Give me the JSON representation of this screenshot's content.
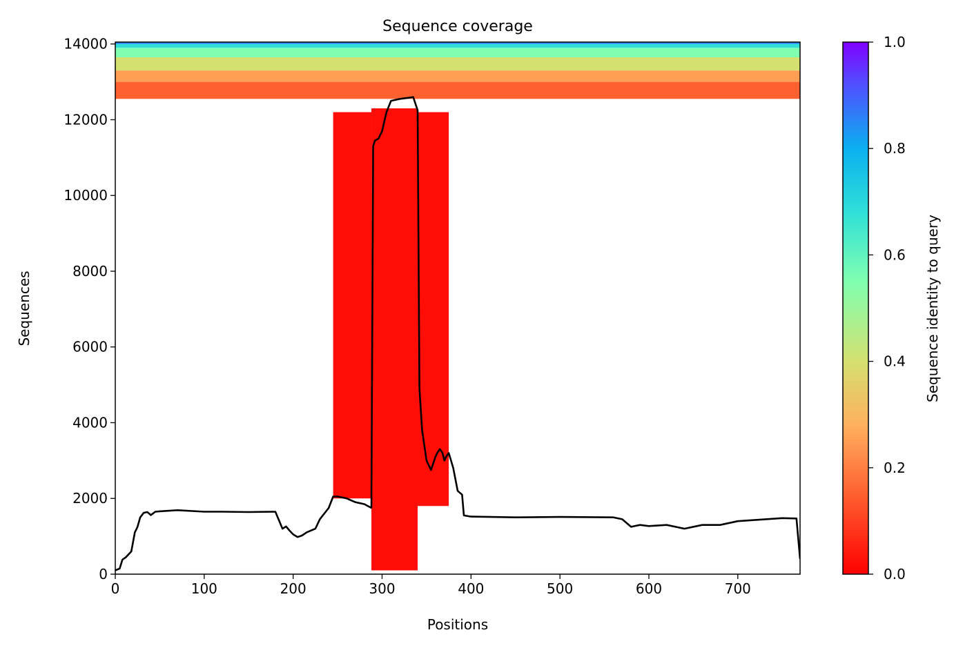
{
  "chart_data": {
    "type": "heatmap",
    "title": "Sequence coverage",
    "xlabel": "Positions",
    "ylabel": "Sequences",
    "xlim": [
      0,
      770
    ],
    "ylim": [
      0,
      14050
    ],
    "xticks": [
      0,
      100,
      200,
      300,
      400,
      500,
      600,
      700
    ],
    "yticks": [
      0,
      2000,
      4000,
      6000,
      8000,
      10000,
      12000,
      14000
    ],
    "grid": false,
    "colorbar": {
      "label": "Sequence identity to query",
      "range": [
        0.0,
        1.0
      ],
      "ticks": [
        "0.0",
        "0.2",
        "0.4",
        "0.6",
        "0.8",
        "1.0"
      ],
      "colormap": "rainbow"
    },
    "coverage_blocks": [
      {
        "x0": 0,
        "x1": 770,
        "y0": 12550,
        "y1": 13000,
        "identity": 0.15
      },
      {
        "x0": 0,
        "x1": 770,
        "y0": 13000,
        "y1": 13300,
        "identity": 0.25
      },
      {
        "x0": 0,
        "x1": 770,
        "y0": 13300,
        "y1": 13650,
        "identity": 0.4
      },
      {
        "x0": 0,
        "x1": 770,
        "y0": 13650,
        "y1": 13900,
        "identity": 0.55
      },
      {
        "x0": 0,
        "x1": 770,
        "y0": 13900,
        "y1": 14000,
        "identity": 0.68
      },
      {
        "x0": 0,
        "x1": 770,
        "y0": 14000,
        "y1": 14050,
        "identity": 0.85
      },
      {
        "x0": 288,
        "x1": 340,
        "y0": 100,
        "y1": 12300,
        "identity": 0.02
      },
      {
        "x0": 340,
        "x1": 375,
        "y0": 1800,
        "y1": 12200,
        "identity": 0.02
      },
      {
        "x0": 245,
        "x1": 288,
        "y0": 2000,
        "y1": 12200,
        "identity": 0.02
      }
    ],
    "series": [
      {
        "x": [
          0,
          5,
          8,
          12,
          18,
          22,
          25,
          28,
          32,
          36,
          40,
          45,
          50,
          70,
          100,
          120,
          150,
          180,
          188,
          192,
          196,
          200,
          205,
          210,
          215,
          225,
          230,
          240,
          245,
          250,
          260,
          270,
          280,
          288,
          290,
          292,
          296,
          300,
          305,
          310,
          320,
          330,
          335,
          340,
          342,
          345,
          350,
          355,
          360,
          362,
          365,
          368,
          370,
          372,
          375,
          380,
          385,
          390,
          392,
          400,
          450,
          500,
          560,
          570,
          575,
          580,
          590,
          600,
          620,
          640,
          660,
          680,
          700,
          750,
          766,
          770
        ],
        "y": [
          100,
          150,
          380,
          450,
          600,
          1100,
          1250,
          1500,
          1620,
          1640,
          1560,
          1650,
          1660,
          1690,
          1650,
          1650,
          1640,
          1650,
          1200,
          1260,
          1150,
          1050,
          980,
          1020,
          1100,
          1200,
          1450,
          1750,
          2050,
          2050,
          2000,
          1900,
          1850,
          1750,
          11300,
          11450,
          11500,
          11700,
          12200,
          12500,
          12550,
          12580,
          12600,
          12250,
          4900,
          3800,
          3000,
          2750,
          3100,
          3200,
          3300,
          3200,
          3000,
          3100,
          3200,
          2800,
          2200,
          2100,
          1550,
          1520,
          1500,
          1510,
          1500,
          1450,
          1350,
          1250,
          1300,
          1270,
          1300,
          1200,
          1300,
          1300,
          1400,
          1480,
          1470,
          400
        ]
      }
    ]
  }
}
